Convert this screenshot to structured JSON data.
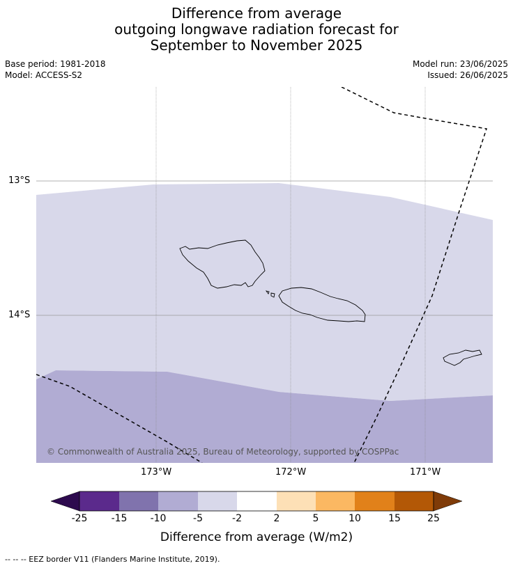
{
  "title": {
    "line1": "Difference from average",
    "line2": "outgoing longwave radiation forecast for",
    "line3": "September to November 2025"
  },
  "meta": {
    "base_period": "Base period: 1981-2018",
    "model": "Model: ACCESS-S2",
    "model_run": "Model run: 23/06/2025",
    "issued": "Issued: 26/06/2025"
  },
  "map": {
    "lat_labels": [
      "13°S",
      "14°S"
    ],
    "lon_labels": [
      "173°W",
      "172°W",
      "171°W"
    ],
    "copyright": "© Commonwealth of Australia 2025, Bureau of Meteorology, supported by COSPPac",
    "fill_colors": {
      "-5_to_-2": "#d8d8ea",
      "-10_to_-5": "#b1acd3"
    }
  },
  "colorbar": {
    "title": "Difference from average (W/m2)",
    "labels": [
      "-25",
      "-15",
      "-10",
      "-5",
      "-2",
      "2",
      "5",
      "10",
      "15",
      "25"
    ],
    "colors": [
      "#2d0a4e",
      "#5b2a8c",
      "#8073ad",
      "#b1acd3",
      "#d8d8ea",
      "#ffffff",
      "#fde0b6",
      "#fbb862",
      "#e1811a",
      "#b35806",
      "#7f3b08"
    ]
  },
  "footer": "--  --  -- EEZ border V11 (Flanders Marine Institute, 2019)."
}
